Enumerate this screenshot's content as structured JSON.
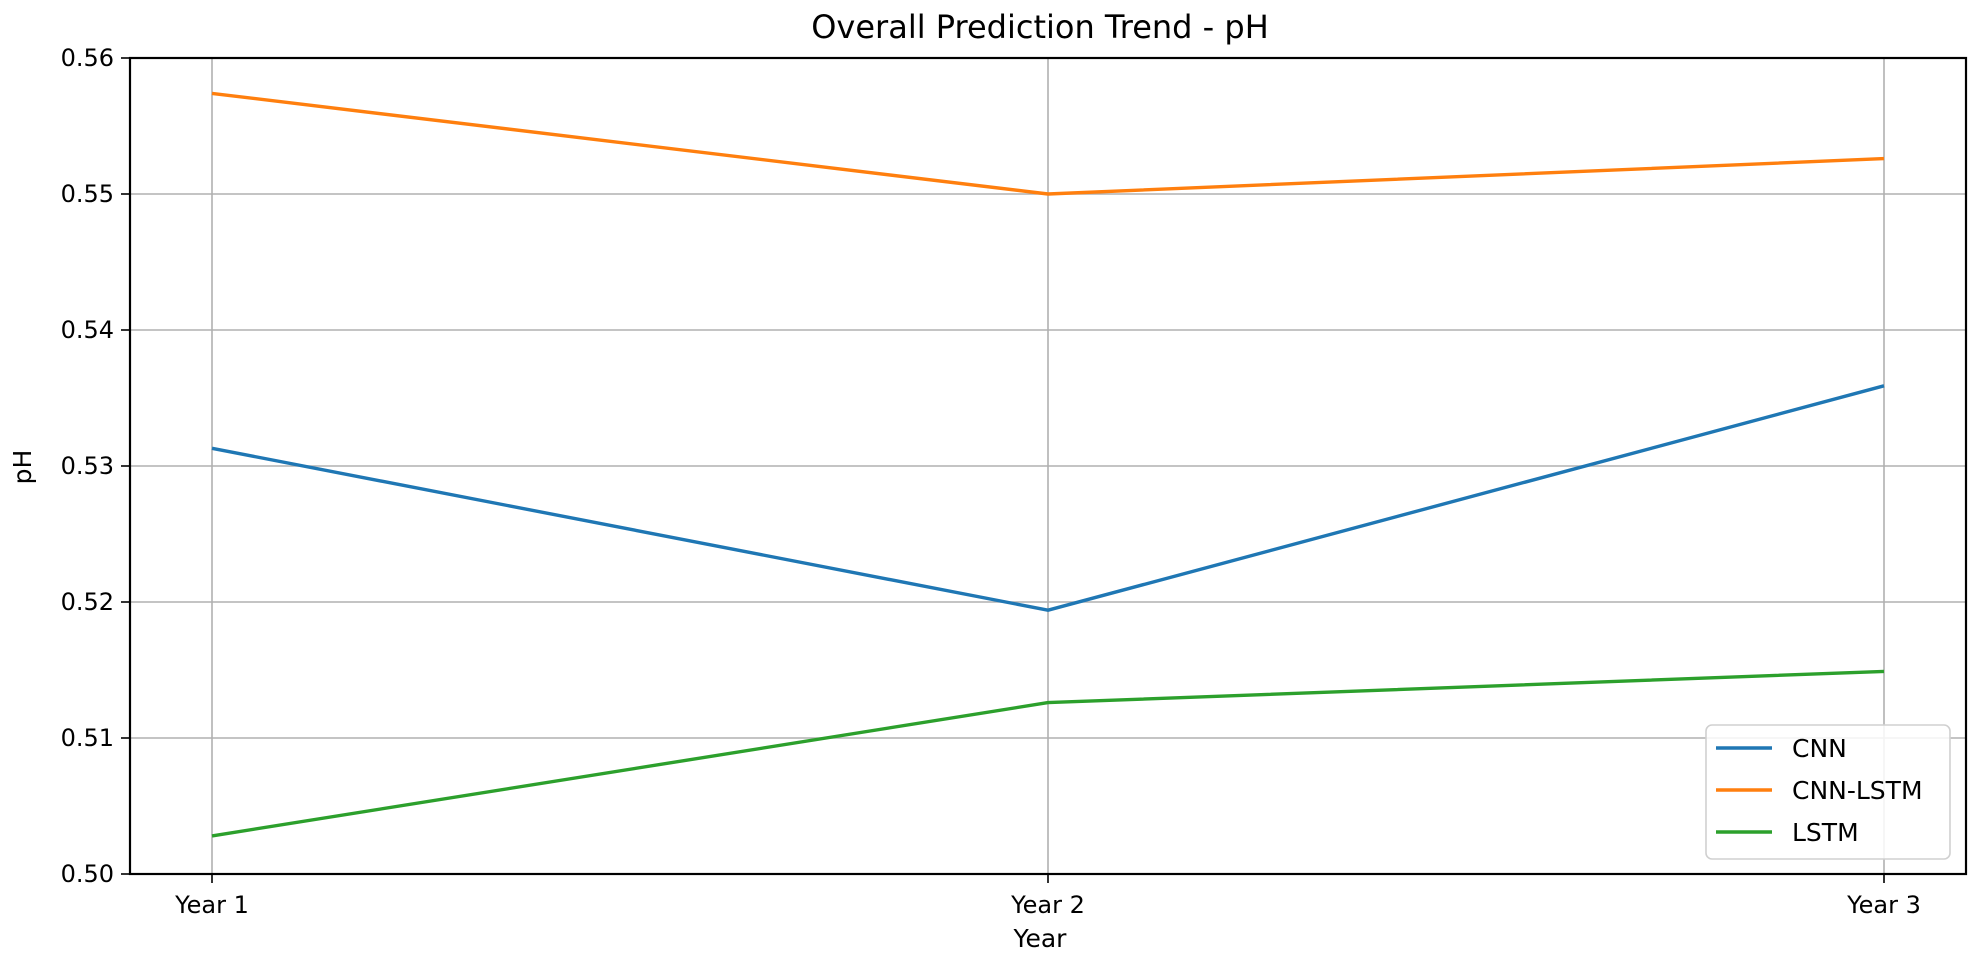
{
  "chart_data": {
    "type": "line",
    "title": "Overall Prediction Trend - pH",
    "xlabel": "Year",
    "ylabel": "pH",
    "categories": [
      "Year 1",
      "Year 2",
      "Year 3"
    ],
    "ylim": [
      0.5,
      0.56
    ],
    "yticks": [
      "0.50",
      "0.51",
      "0.52",
      "0.53",
      "0.54",
      "0.55",
      "0.56"
    ],
    "grid": true,
    "legend_position": "bottom-right",
    "series": [
      {
        "name": "CNN",
        "color": "#1f77b4",
        "values": [
          0.5313,
          0.5194,
          0.5359
        ]
      },
      {
        "name": "CNN-LSTM",
        "color": "#ff7f0e",
        "values": [
          0.5574,
          0.55,
          0.5526
        ]
      },
      {
        "name": "LSTM",
        "color": "#2ca02c",
        "values": [
          0.5028,
          0.5126,
          0.5149
        ]
      }
    ]
  }
}
